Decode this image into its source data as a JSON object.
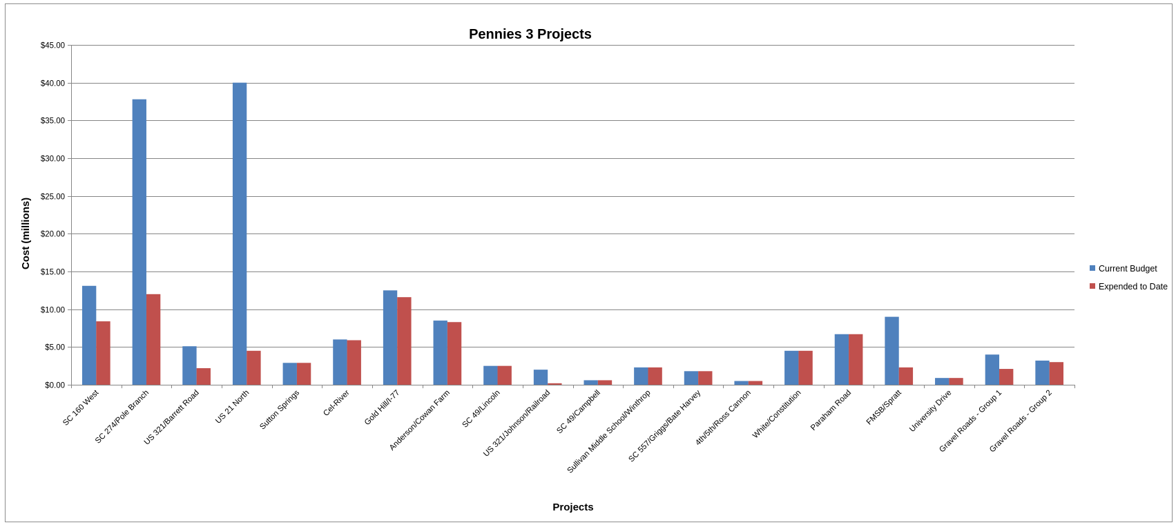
{
  "chart_data": {
    "type": "bar",
    "title": "Pennies 3 Projects",
    "xlabel": "Projects",
    "ylabel": "Cost (millions)",
    "ylim": [
      0,
      45
    ],
    "yticks": [
      "$0.00",
      "$5.00",
      "$10.00",
      "$15.00",
      "$20.00",
      "$25.00",
      "$30.00",
      "$35.00",
      "$40.00",
      "$45.00"
    ],
    "grid": true,
    "legend_position": "right",
    "categories": [
      "SC 160 West",
      "SC 274/Pole Branch",
      "US 321/Barrett Road",
      "US 21 North",
      "Sutton Springs",
      "Cel-River",
      "Gold Hill/I-77",
      "Anderson/Cowan Farm",
      "SC 49/Lincoln",
      "US 321/Johnson/Railroad",
      "SC 49/Campbell",
      "Sullivan Middle School/Winthrop",
      "SC 557/Griggs/Bate Harvey",
      "4th/5th/Ross Cannon",
      "White/Constitution",
      "Paraham Road",
      "FMSB/Spratt",
      "University Drive",
      "Gravel Roads - Group 1",
      "Gravel Roads - Group 2"
    ],
    "series": [
      {
        "name": "Current Budget",
        "color": "#4F81BD",
        "values": [
          13.1,
          37.8,
          5.1,
          40.0,
          2.9,
          6.0,
          12.5,
          8.5,
          2.5,
          2.0,
          0.6,
          2.3,
          1.8,
          0.5,
          4.5,
          6.7,
          9.0,
          0.9,
          4.0,
          3.2
        ]
      },
      {
        "name": "Expended to Date",
        "color": "#C0504D",
        "values": [
          8.4,
          12.0,
          2.2,
          4.5,
          2.9,
          5.9,
          11.6,
          8.3,
          2.5,
          0.2,
          0.6,
          2.3,
          1.8,
          0.5,
          4.5,
          6.7,
          2.3,
          0.9,
          2.1,
          3.0
        ]
      }
    ]
  }
}
